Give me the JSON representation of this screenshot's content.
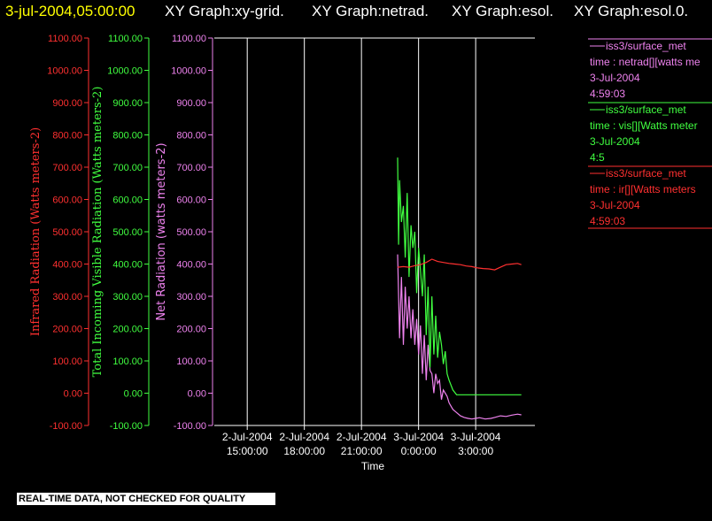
{
  "header": {
    "datetime": "3-jul-2004,05:00:00",
    "titles": [
      "XY Graph:xy-grid.",
      "XY Graph:netrad.",
      "XY Graph:esol.",
      "XY Graph:esol.0."
    ]
  },
  "disclaimer": "REAL-TIME DATA, NOT CHECKED FOR QUALITY",
  "colors": {
    "background": "#000000",
    "header_date": "#ffff00",
    "infrared": "#ff3030",
    "visible": "#40ff40",
    "net": "#ee82ee",
    "grid": "#ffffff"
  },
  "legend": [
    {
      "source": "iss3/surface_met",
      "variable": "time : netrad[][watts me",
      "date": "3-Jul-2004",
      "time": "4:59:03",
      "color": "#ee82ee"
    },
    {
      "source": "iss3/surface_met",
      "variable": "time : vis[][Watts meter",
      "date": "3-Jul-2004",
      "time": "4:5",
      "color": "#40ff40"
    },
    {
      "source": "iss3/surface_met",
      "variable": "time : ir[][Watts meters",
      "date": "3-Jul-2004",
      "time": "4:59:03",
      "color": "#ff3030"
    }
  ],
  "chart_data": {
    "type": "line",
    "xlabel": "Time",
    "x_ticks": [
      {
        "date": "2-Jul-2004",
        "time": "15:00:00",
        "hours": 0
      },
      {
        "date": "2-Jul-2004",
        "time": "18:00:00",
        "hours": 3
      },
      {
        "date": "2-Jul-2004",
        "time": "21:00:00",
        "hours": 6
      },
      {
        "date": "3-Jul-2004",
        "time": "0:00:00",
        "hours": 9
      },
      {
        "date": "3-Jul-2004",
        "time": "3:00:00",
        "hours": 12
      }
    ],
    "xlim_hours": [
      -1.73,
      15.11
    ],
    "ylim": [
      -100,
      1100
    ],
    "y_ticks": [
      "1100.00",
      "1000.00",
      "900.00",
      "800.00",
      "700.00",
      "600.00",
      "500.00",
      "400.00",
      "300.00",
      "200.00",
      "100.00",
      "0.00",
      "-100.00"
    ],
    "y_axes": [
      {
        "label": "Infrared Radiation (Watts meters-2)",
        "color": "#ff3030"
      },
      {
        "label": "Total Incoming Visible Radiation (Watts meters-2)",
        "color": "#40ff40"
      },
      {
        "label": "Net Radiation (watts meters-2)",
        "color": "#ee82ee"
      }
    ],
    "grid": true,
    "series": [
      {
        "name": "iss3/surface_met time : netrad[][watts me",
        "color": "#ee82ee",
        "x_hours": [
          7.9,
          8.0,
          8.1,
          8.2,
          8.3,
          8.4,
          8.5,
          8.6,
          8.7,
          8.8,
          8.9,
          9.0,
          9.1,
          9.2,
          9.3,
          9.4,
          9.5,
          9.6,
          9.7,
          9.8,
          9.9,
          10.0,
          10.1,
          10.2,
          10.3,
          10.4,
          10.5,
          10.6,
          10.7,
          10.8,
          11.0,
          11.2,
          11.4,
          11.6,
          11.8,
          12.0,
          12.2,
          12.5,
          12.8,
          13.0,
          13.3,
          13.6,
          13.9,
          14.2,
          14.4
        ],
        "values": [
          430,
          170,
          360,
          150,
          330,
          200,
          300,
          170,
          260,
          150,
          230,
          120,
          210,
          60,
          180,
          40,
          150,
          70,
          60,
          0,
          60,
          30,
          40,
          -20,
          10,
          0,
          -10,
          -30,
          -40,
          -50,
          -60,
          -70,
          -75,
          -78,
          -80,
          -78,
          -76,
          -80,
          -78,
          -75,
          -70,
          -72,
          -68,
          -65,
          -67
        ]
      },
      {
        "name": "iss3/surface_met time : vis[][Watts meter",
        "color": "#40ff40",
        "x_hours": [
          7.9,
          7.95,
          8.0,
          8.1,
          8.2,
          8.3,
          8.4,
          8.5,
          8.6,
          8.7,
          8.8,
          8.9,
          9.0,
          9.1,
          9.2,
          9.3,
          9.4,
          9.5,
          9.6,
          9.7,
          9.8,
          9.9,
          10.0,
          10.1,
          10.2,
          10.3,
          10.4,
          10.5,
          10.6,
          10.8,
          11.0,
          11.2,
          11.5,
          12.0,
          12.5,
          13.0,
          13.5,
          14.0,
          14.4
        ],
        "values": [
          730,
          460,
          660,
          530,
          580,
          420,
          620,
          360,
          520,
          450,
          500,
          310,
          450,
          380,
          300,
          430,
          180,
          330,
          80,
          300,
          120,
          240,
          110,
          190,
          150,
          90,
          130,
          60,
          40,
          10,
          -5,
          -5,
          -5,
          -5,
          -5,
          -5,
          -5,
          -5,
          -5
        ]
      },
      {
        "name": "iss3/surface_met time : ir[][Watts meters",
        "color": "#ff3030",
        "x_hours": [
          7.9,
          8.2,
          8.5,
          8.8,
          9.1,
          9.4,
          9.7,
          10.0,
          10.3,
          10.6,
          10.9,
          11.2,
          11.5,
          11.8,
          12.1,
          12.4,
          12.7,
          13.0,
          13.3,
          13.6,
          13.9,
          14.2,
          14.4
        ],
        "values": [
          390,
          392,
          390,
          395,
          398,
          405,
          415,
          408,
          405,
          402,
          400,
          398,
          394,
          392,
          388,
          386,
          385,
          382,
          390,
          398,
          400,
          402,
          398
        ]
      }
    ]
  }
}
